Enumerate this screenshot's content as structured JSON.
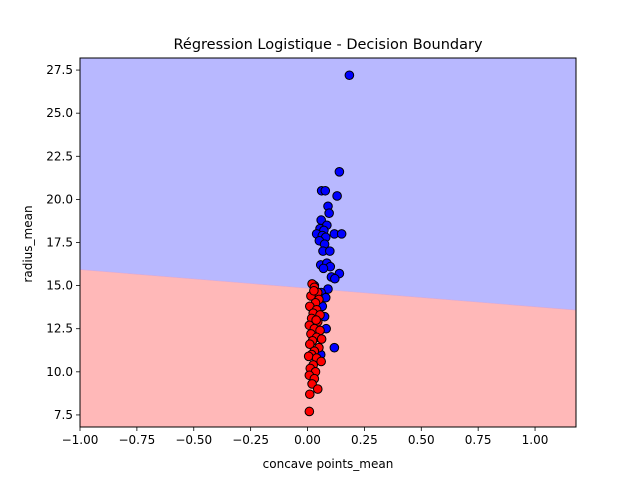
{
  "chart_data": {
    "type": "scatter",
    "title": "Régression Logistique - Decision Boundary",
    "xlabel": "concave points_mean",
    "ylabel": "radius_mean",
    "xlim": [
      -1.0,
      1.18
    ],
    "ylim": [
      6.8,
      28.2
    ],
    "x_ticks": [
      -1.0,
      -0.75,
      -0.5,
      -0.25,
      0.0,
      0.25,
      0.5,
      0.75,
      1.0
    ],
    "x_tick_labels": [
      "−1.00",
      "−0.75",
      "−0.50",
      "−0.25",
      "0.00",
      "0.25",
      "0.50",
      "0.75",
      "1.00"
    ],
    "y_ticks": [
      7.5,
      10.0,
      12.5,
      15.0,
      17.5,
      20.0,
      22.5,
      25.0,
      27.5
    ],
    "y_tick_labels": [
      "7.5",
      "10.0",
      "12.5",
      "15.0",
      "17.5",
      "20.0",
      "22.5",
      "25.0",
      "27.5"
    ],
    "grid": false,
    "decision_boundary": {
      "points": [
        [
          -1.0,
          15.93
        ],
        [
          1.18,
          13.58
        ]
      ],
      "upper_region_color": "#b8b8ff",
      "lower_region_color": "#ffb8b8"
    },
    "series": [
      {
        "color": "#0000ff",
        "points": [
          [
            0.184,
            27.2
          ],
          [
            0.14,
            21.6
          ],
          [
            0.062,
            20.5
          ],
          [
            0.078,
            20.5
          ],
          [
            0.13,
            20.2
          ],
          [
            0.09,
            19.6
          ],
          [
            0.095,
            19.2
          ],
          [
            0.06,
            18.8
          ],
          [
            0.085,
            18.5
          ],
          [
            0.055,
            18.3
          ],
          [
            0.072,
            18.2
          ],
          [
            0.04,
            18.0
          ],
          [
            0.065,
            17.9
          ],
          [
            0.118,
            18.0
          ],
          [
            0.15,
            18.0
          ],
          [
            0.08,
            17.8
          ],
          [
            0.052,
            17.6
          ],
          [
            0.075,
            17.4
          ],
          [
            0.068,
            17.0
          ],
          [
            0.098,
            17.0
          ],
          [
            0.058,
            16.2
          ],
          [
            0.085,
            16.3
          ],
          [
            0.1,
            16.1
          ],
          [
            0.07,
            16.0
          ],
          [
            0.14,
            15.7
          ],
          [
            0.105,
            15.5
          ],
          [
            0.12,
            15.4
          ],
          [
            0.09,
            14.8
          ],
          [
            0.06,
            14.6
          ],
          [
            0.08,
            14.3
          ],
          [
            0.045,
            14.2
          ],
          [
            0.065,
            13.8
          ],
          [
            0.075,
            13.2
          ],
          [
            0.082,
            12.5
          ],
          [
            0.058,
            11.0
          ],
          [
            0.118,
            11.4
          ],
          [
            0.03,
            15.0
          ]
        ]
      },
      {
        "color": "#ff0000",
        "points": [
          [
            0.02,
            15.1
          ],
          [
            0.03,
            14.9
          ],
          [
            0.045,
            14.6
          ],
          [
            0.015,
            14.4
          ],
          [
            0.05,
            14.2
          ],
          [
            0.035,
            14.0
          ],
          [
            0.01,
            13.8
          ],
          [
            0.04,
            13.6
          ],
          [
            0.025,
            13.4
          ],
          [
            0.055,
            13.3
          ],
          [
            0.018,
            13.1
          ],
          [
            0.045,
            12.9
          ],
          [
            0.008,
            12.7
          ],
          [
            0.03,
            12.5
          ],
          [
            0.055,
            12.4
          ],
          [
            0.015,
            12.2
          ],
          [
            0.04,
            12.0
          ],
          [
            0.022,
            11.8
          ],
          [
            0.01,
            11.6
          ],
          [
            0.05,
            11.4
          ],
          [
            0.03,
            11.2
          ],
          [
            0.018,
            11.0
          ],
          [
            0.005,
            10.9
          ],
          [
            0.04,
            10.8
          ],
          [
            0.06,
            10.6
          ],
          [
            0.025,
            10.4
          ],
          [
            0.012,
            10.2
          ],
          [
            0.035,
            10.0
          ],
          [
            0.008,
            9.8
          ],
          [
            0.03,
            9.6
          ],
          [
            0.02,
            9.3
          ],
          [
            0.045,
            9.0
          ],
          [
            0.01,
            8.7
          ],
          [
            0.008,
            7.7
          ],
          [
            0.038,
            13.0
          ],
          [
            0.062,
            11.9
          ],
          [
            0.028,
            14.7
          ]
        ]
      }
    ]
  }
}
